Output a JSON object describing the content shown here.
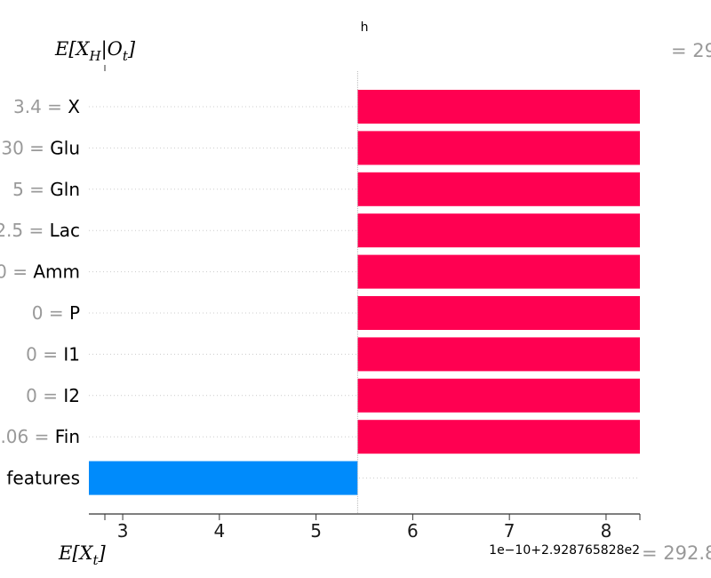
{
  "chart_data": {
    "type": "bar",
    "orientation": "horizontal",
    "title": "h",
    "top_axis_label": "E[X_H|O_t]",
    "bottom_axis_label": "E[X_t]",
    "final_value_label": "= 29",
    "base_value_label": "= 292.8",
    "offset_label": "1e−10+2.928765828e2",
    "x_ticks": [
      3,
      4,
      5,
      6,
      7,
      8
    ],
    "xlim": [
      2.65,
      8.35
    ],
    "base_value": 5.43,
    "bars": [
      {
        "value_label": "3.4",
        "name": "X",
        "start": 5.43,
        "end": 8.35
      },
      {
        "value_label": "30",
        "name": "Glu",
        "start": 5.43,
        "end": 8.35
      },
      {
        "value_label": "5",
        "name": "Gln",
        "start": 5.43,
        "end": 8.35
      },
      {
        "value_label": "2.5",
        "name": "Lac",
        "start": 5.43,
        "end": 8.35
      },
      {
        "value_label": "0",
        "name": "Amm",
        "start": 5.43,
        "end": 8.35
      },
      {
        "value_label": "0",
        "name": "P",
        "start": 5.43,
        "end": 8.35
      },
      {
        "value_label": "0",
        "name": "I1",
        "start": 5.43,
        "end": 8.35
      },
      {
        "value_label": "0",
        "name": "I2",
        "start": 5.43,
        "end": 8.35
      },
      {
        "value_label": ".06",
        "name": "Fin",
        "start": 5.43,
        "end": 8.35
      },
      {
        "value_label": "",
        "name": "features",
        "start": 2.65,
        "end": 5.43
      }
    ],
    "colors": {
      "positive": "#ff0051",
      "negative": "#008bfb",
      "separator": "#cccccc",
      "value_text": "#999999"
    }
  }
}
